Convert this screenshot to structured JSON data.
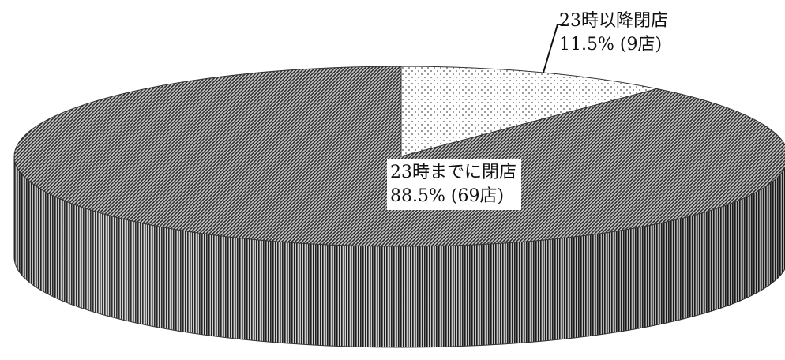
{
  "chart_data": {
    "type": "pie",
    "slices": [
      {
        "label": "23時以降閉店",
        "percent": 11.5,
        "count": 9,
        "value_text": "11.5% (9店)"
      },
      {
        "label": "23時までに閉店",
        "percent": 88.5,
        "count": 69,
        "value_text": "88.5% (69店)"
      }
    ]
  }
}
